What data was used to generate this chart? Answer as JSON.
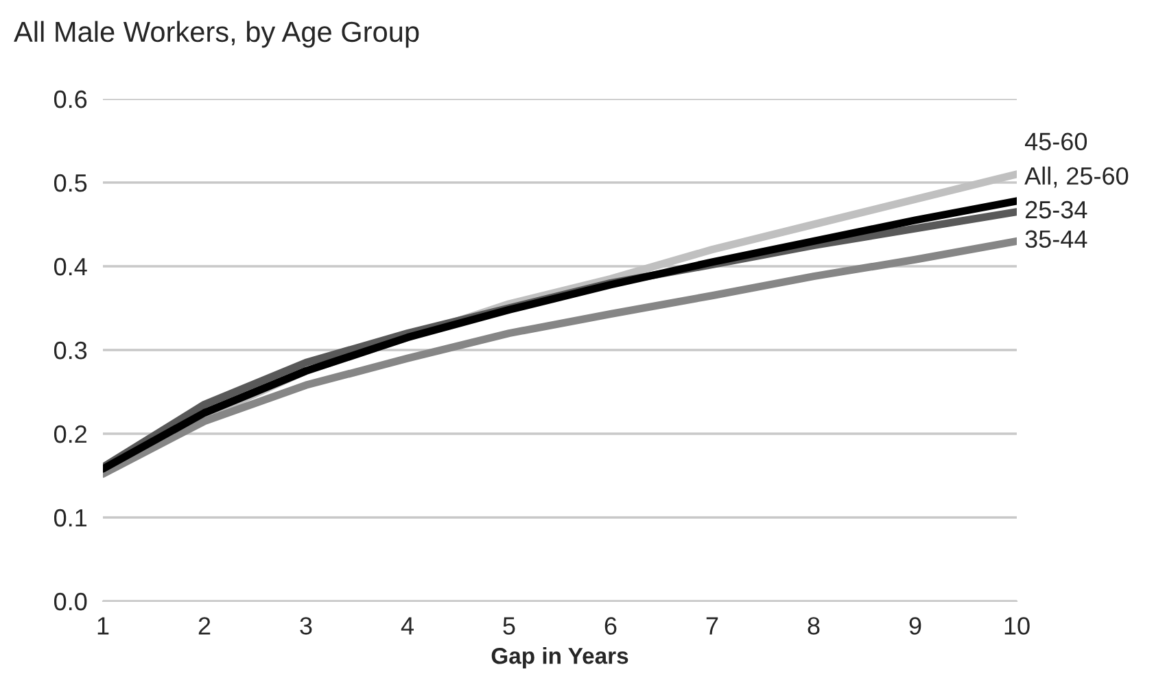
{
  "chart_data": {
    "type": "line",
    "title": "All Male Workers, by Age Group",
    "xlabel": "Gap in Years",
    "x": [
      1,
      2,
      3,
      4,
      5,
      6,
      7,
      8,
      9,
      10
    ],
    "series": [
      {
        "name": "45-60",
        "color": "#c0c0c0",
        "values": [
          0.155,
          0.22,
          0.275,
          0.315,
          0.355,
          0.385,
          0.42,
          0.45,
          0.48,
          0.51
        ]
      },
      {
        "name": "35-44",
        "color": "#868686",
        "values": [
          0.152,
          0.215,
          0.258,
          0.29,
          0.32,
          0.343,
          0.365,
          0.388,
          0.408,
          0.43
        ]
      },
      {
        "name": "25-34",
        "color": "#595959",
        "values": [
          0.16,
          0.235,
          0.285,
          0.32,
          0.35,
          0.38,
          0.402,
          0.425,
          0.445,
          0.465
        ]
      },
      {
        "name": "All, 25-60",
        "color": "#000000",
        "values": [
          0.158,
          0.225,
          0.275,
          0.315,
          0.348,
          0.378,
          0.405,
          0.43,
          0.455,
          0.478
        ]
      }
    ],
    "xlim": [
      1,
      10
    ],
    "xticks": [
      1,
      2,
      3,
      4,
      5,
      6,
      7,
      8,
      9,
      10
    ],
    "ylim": [
      0,
      0.6
    ],
    "yticks": [
      {
        "value": 0,
        "label": "0.0"
      },
      {
        "value": 0.1,
        "label": "0.1"
      },
      {
        "value": 0.2,
        "label": "0.2"
      },
      {
        "value": 0.3,
        "label": "0.3"
      },
      {
        "value": 0.4,
        "label": "0.4"
      },
      {
        "value": 0.5,
        "label": "0.5"
      },
      {
        "value": 0.6,
        "label": "0.6"
      }
    ],
    "grid": "y",
    "legend": false,
    "marker": "none",
    "line_style": "solid"
  }
}
